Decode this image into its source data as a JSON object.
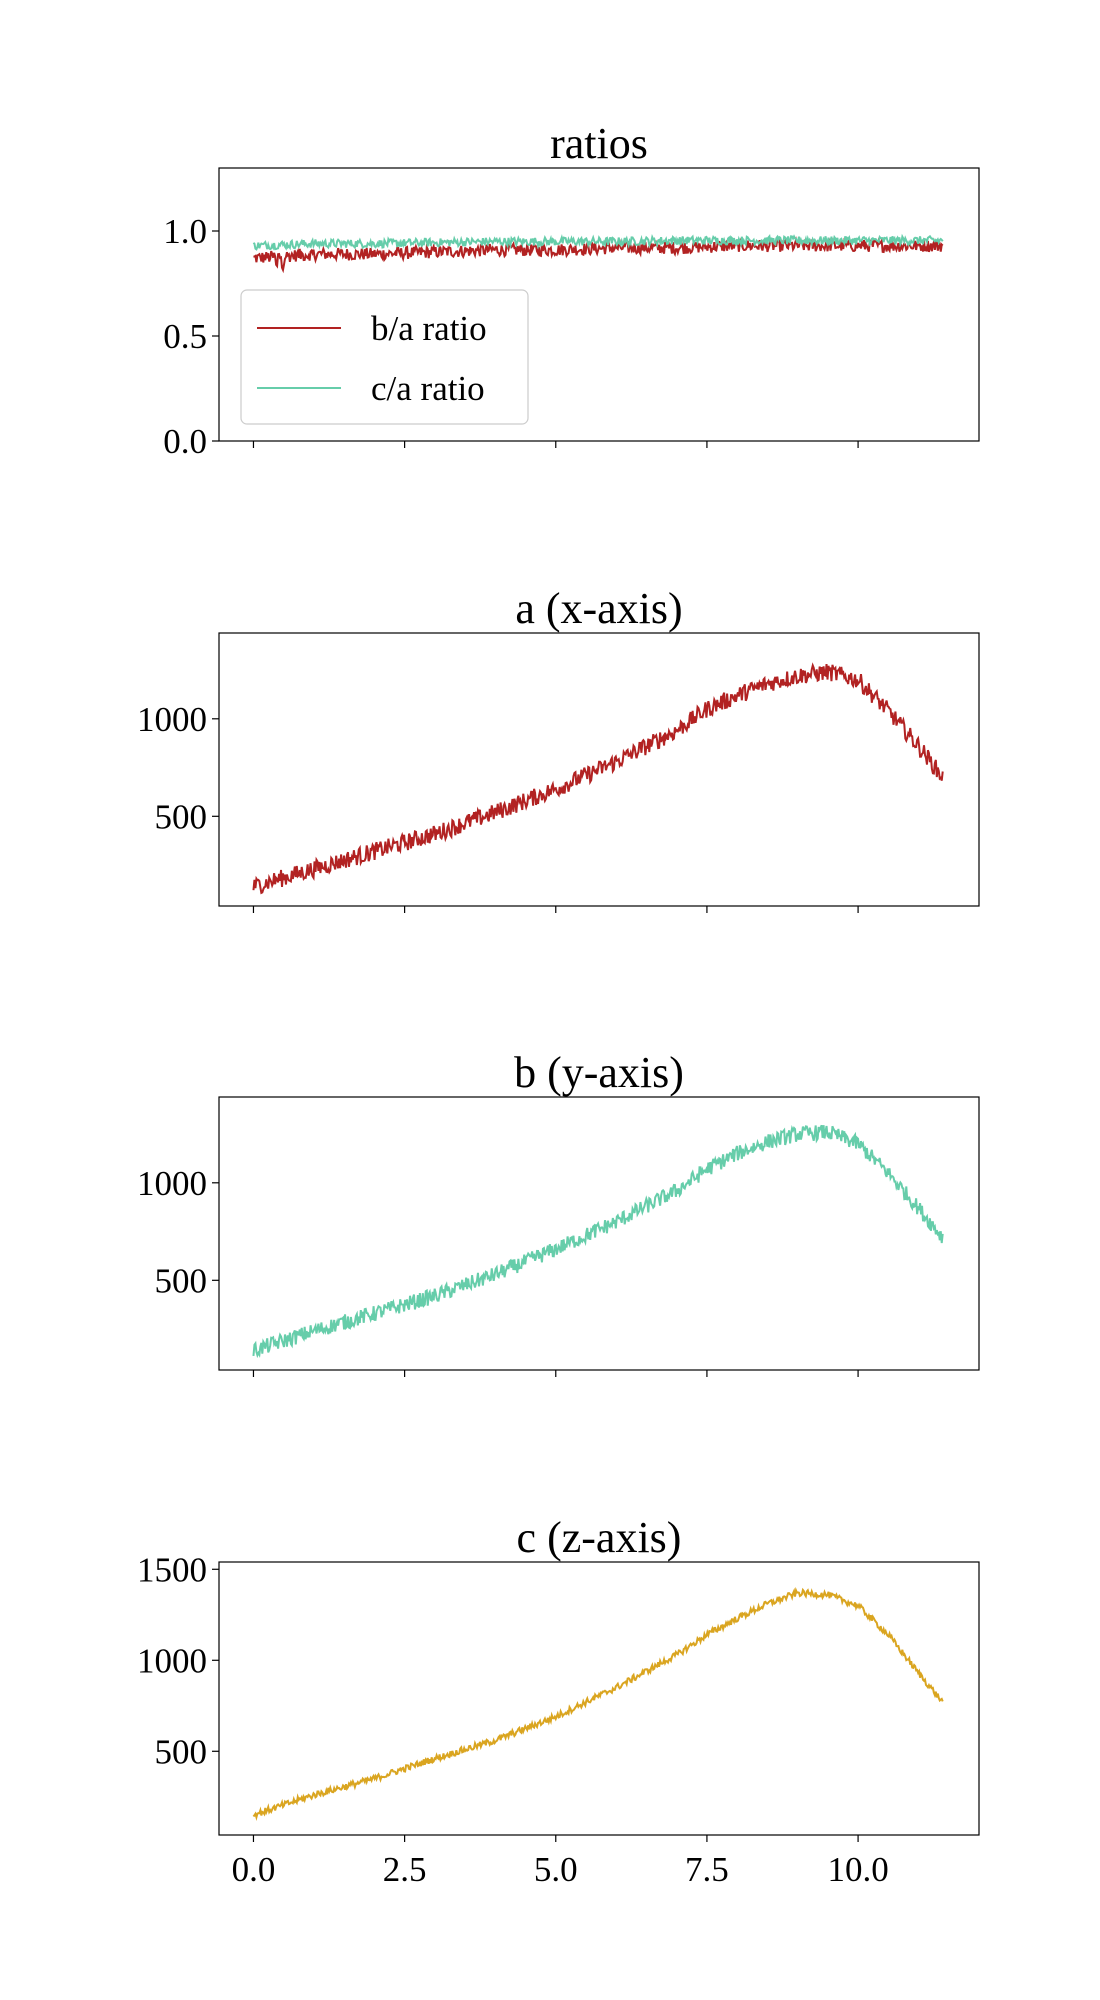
{
  "figure": {
    "background": "#ffffff"
  },
  "chart_data": [
    {
      "type": "line",
      "title": "ratios",
      "xlabel": "",
      "ylabel": "",
      "xlim": [
        -0.57,
        12.0
      ],
      "ylim": [
        0.0,
        1.3
      ],
      "xticks": [
        0.0,
        2.5,
        5.0,
        7.5,
        10.0
      ],
      "xtick_labels_shown": false,
      "yticks": [
        0.0,
        0.5,
        1.0
      ],
      "ytick_labels": [
        "0.0",
        "0.5",
        "1.0"
      ],
      "legend": {
        "placement": "center-left",
        "entries": [
          "b/a ratio",
          "c/a ratio"
        ]
      },
      "series": [
        {
          "name": "b/a ratio",
          "color": "#b22222",
          "x": [
            0.0,
            0.5,
            1.0,
            2.0,
            3.0,
            4.0,
            5.0,
            6.0,
            7.0,
            8.0,
            9.0,
            10.0,
            11.4
          ],
          "values": [
            0.87,
            0.88,
            0.89,
            0.89,
            0.9,
            0.91,
            0.91,
            0.92,
            0.92,
            0.93,
            0.93,
            0.93,
            0.93
          ],
          "noise": 0.03
        },
        {
          "name": "c/a ratio",
          "color": "#66cdaa",
          "x": [
            0.0,
            0.5,
            1.0,
            2.0,
            3.0,
            4.0,
            5.0,
            6.0,
            7.0,
            8.0,
            9.0,
            10.0,
            11.4
          ],
          "values": [
            0.93,
            0.935,
            0.94,
            0.94,
            0.945,
            0.95,
            0.95,
            0.95,
            0.955,
            0.955,
            0.955,
            0.955,
            0.955
          ],
          "noise": 0.02
        }
      ]
    },
    {
      "type": "line",
      "title": "a (x-axis)",
      "xlabel": "",
      "ylabel": "",
      "xlim": [
        -0.57,
        12.0
      ],
      "ylim": [
        40,
        1440
      ],
      "xticks": [
        0.0,
        2.5,
        5.0,
        7.5,
        10.0
      ],
      "xtick_labels_shown": false,
      "yticks": [
        500,
        1000
      ],
      "ytick_labels": [
        "500",
        "1000"
      ],
      "series": [
        {
          "name": "",
          "color": "#b22222",
          "x": [
            0.0,
            1.0,
            2.0,
            3.0,
            4.0,
            5.0,
            6.0,
            7.0,
            7.5,
            8.0,
            8.5,
            9.0,
            9.5,
            10.0,
            10.5,
            11.0,
            11.4
          ],
          "values": [
            140,
            230,
            320,
            410,
            520,
            640,
            780,
            940,
            1050,
            1120,
            1180,
            1220,
            1240,
            1200,
            1040,
            860,
            700
          ],
          "noise": 45
        }
      ]
    },
    {
      "type": "line",
      "title": "b (y-axis)",
      "xlabel": "",
      "ylabel": "",
      "xlim": [
        -0.57,
        12.0
      ],
      "ylim": [
        40,
        1440
      ],
      "xticks": [
        0.0,
        2.5,
        5.0,
        7.5,
        10.0
      ],
      "xtick_labels_shown": false,
      "yticks": [
        500,
        1000
      ],
      "ytick_labels": [
        "500",
        "1000"
      ],
      "series": [
        {
          "name": "",
          "color": "#66cdaa",
          "x": [
            0.0,
            1.0,
            2.0,
            3.0,
            4.0,
            5.0,
            6.0,
            7.0,
            7.5,
            8.0,
            8.5,
            9.0,
            9.5,
            10.0,
            10.5,
            11.0,
            11.4
          ],
          "values": [
            140,
            240,
            330,
            420,
            530,
            660,
            800,
            960,
            1070,
            1150,
            1210,
            1250,
            1260,
            1200,
            1050,
            870,
            720
          ],
          "noise": 40
        }
      ]
    },
    {
      "type": "line",
      "title": "c (z-axis)",
      "xlabel": "",
      "ylabel": "",
      "xlim": [
        -0.57,
        12.0
      ],
      "ylim": [
        40,
        1540
      ],
      "xticks": [
        0.0,
        2.5,
        5.0,
        7.5,
        10.0
      ],
      "xtick_labels_shown": true,
      "xtick_labels": [
        "0.0",
        "2.5",
        "5.0",
        "7.5",
        "10.0"
      ],
      "yticks": [
        500,
        1000,
        1500
      ],
      "ytick_labels": [
        "500",
        "1000",
        "1500"
      ],
      "series": [
        {
          "name": "",
          "color": "#daa520",
          "x": [
            0.0,
            1.0,
            2.0,
            3.0,
            4.0,
            5.0,
            6.0,
            7.0,
            7.5,
            8.0,
            8.5,
            9.0,
            9.5,
            10.0,
            10.5,
            11.0,
            11.4
          ],
          "values": [
            150,
            260,
            350,
            460,
            560,
            690,
            850,
            1030,
            1140,
            1230,
            1310,
            1370,
            1360,
            1300,
            1140,
            930,
            770
          ],
          "noise": 18
        }
      ]
    }
  ]
}
